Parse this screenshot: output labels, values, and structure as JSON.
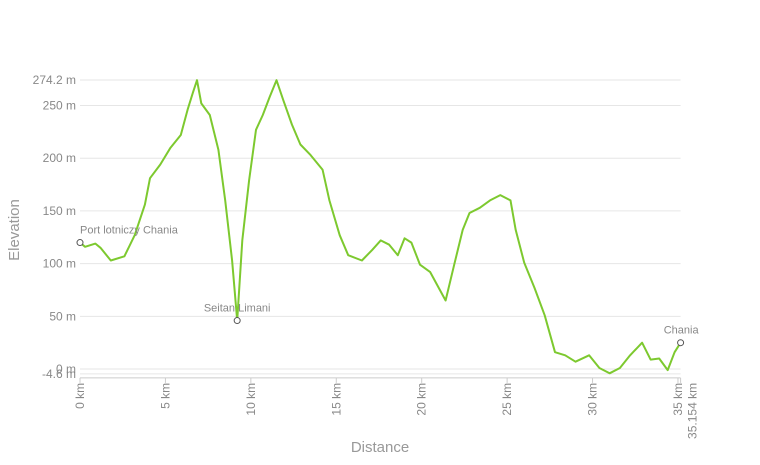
{
  "chart_data": {
    "type": "line",
    "x_label": "Distance",
    "y_label": "Elevation",
    "xlim": [
      0,
      35.154
    ],
    "ylim": [
      -4.6,
      274.2
    ],
    "xticks": [
      {
        "value": 0,
        "label": "0 km"
      },
      {
        "value": 5,
        "label": "5 km"
      },
      {
        "value": 10,
        "label": "10 km"
      },
      {
        "value": 15,
        "label": "15 km"
      },
      {
        "value": 20,
        "label": "20 km"
      },
      {
        "value": 25,
        "label": "25 km"
      },
      {
        "value": 30,
        "label": "30 km"
      },
      {
        "value": 35,
        "label": "35 km"
      },
      {
        "value": 35.154,
        "label": "35.154 km"
      }
    ],
    "yticks": [
      {
        "value": -4.6,
        "label": "-4.6 m"
      },
      {
        "value": 0,
        "label": "0 m"
      },
      {
        "value": 50,
        "label": "50 m"
      },
      {
        "value": 100,
        "label": "100 m"
      },
      {
        "value": 150,
        "label": "150 m"
      },
      {
        "value": 200,
        "label": "200 m"
      },
      {
        "value": 250,
        "label": "250 m"
      },
      {
        "value": 274.2,
        "label": "274.2 m"
      }
    ],
    "grid": true,
    "x": [
      0,
      0.3,
      0.9,
      1.2,
      1.8,
      2.6,
      3.2,
      3.8,
      4.1,
      4.7,
      5.3,
      5.9,
      6.3,
      6.6,
      6.85,
      7.1,
      7.6,
      8.1,
      8.5,
      8.9,
      9.2,
      9.5,
      9.9,
      10.3,
      10.7,
      11.1,
      11.5,
      11.9,
      12.4,
      12.9,
      13.5,
      14.2,
      14.6,
      15.2,
      15.7,
      16.5,
      17.1,
      17.6,
      18.1,
      18.6,
      19.0,
      19.4,
      19.9,
      20.5,
      21.4,
      21.9,
      22.4,
      22.8,
      23.4,
      24.0,
      24.6,
      25.2,
      25.5,
      26.0,
      26.6,
      27.2,
      27.8,
      28.4,
      29.0,
      29.8,
      30.4,
      31.0,
      31.6,
      32.2,
      32.9,
      33.4,
      33.9,
      34.4,
      34.8,
      35.154
    ],
    "series": [
      {
        "name": "Elevation",
        "color": "#7dc92f",
        "values": [
          120,
          116,
          119,
          115,
          103,
          107,
          127,
          156,
          181,
          194,
          210,
          222,
          246,
          262,
          274,
          252,
          241,
          208,
          160,
          103,
          46,
          122,
          179,
          227,
          241,
          258,
          274,
          255,
          232,
          213,
          203,
          189,
          160,
          127,
          108,
          103,
          113,
          122,
          118,
          108,
          124,
          120,
          99,
          92,
          65,
          99,
          132,
          148,
          153,
          160,
          165,
          160,
          132,
          101,
          77,
          51,
          16,
          13,
          7,
          13,
          1,
          -4,
          1,
          13,
          25,
          9,
          10,
          -1,
          16,
          25
        ]
      }
    ],
    "annotations": [
      {
        "x": 0,
        "y": 120,
        "label": "Port lotniczy Chania"
      },
      {
        "x": 9.2,
        "y": 46,
        "label": "Seitan Limani"
      },
      {
        "x": 35.154,
        "y": 25,
        "label": "Chania"
      }
    ]
  }
}
